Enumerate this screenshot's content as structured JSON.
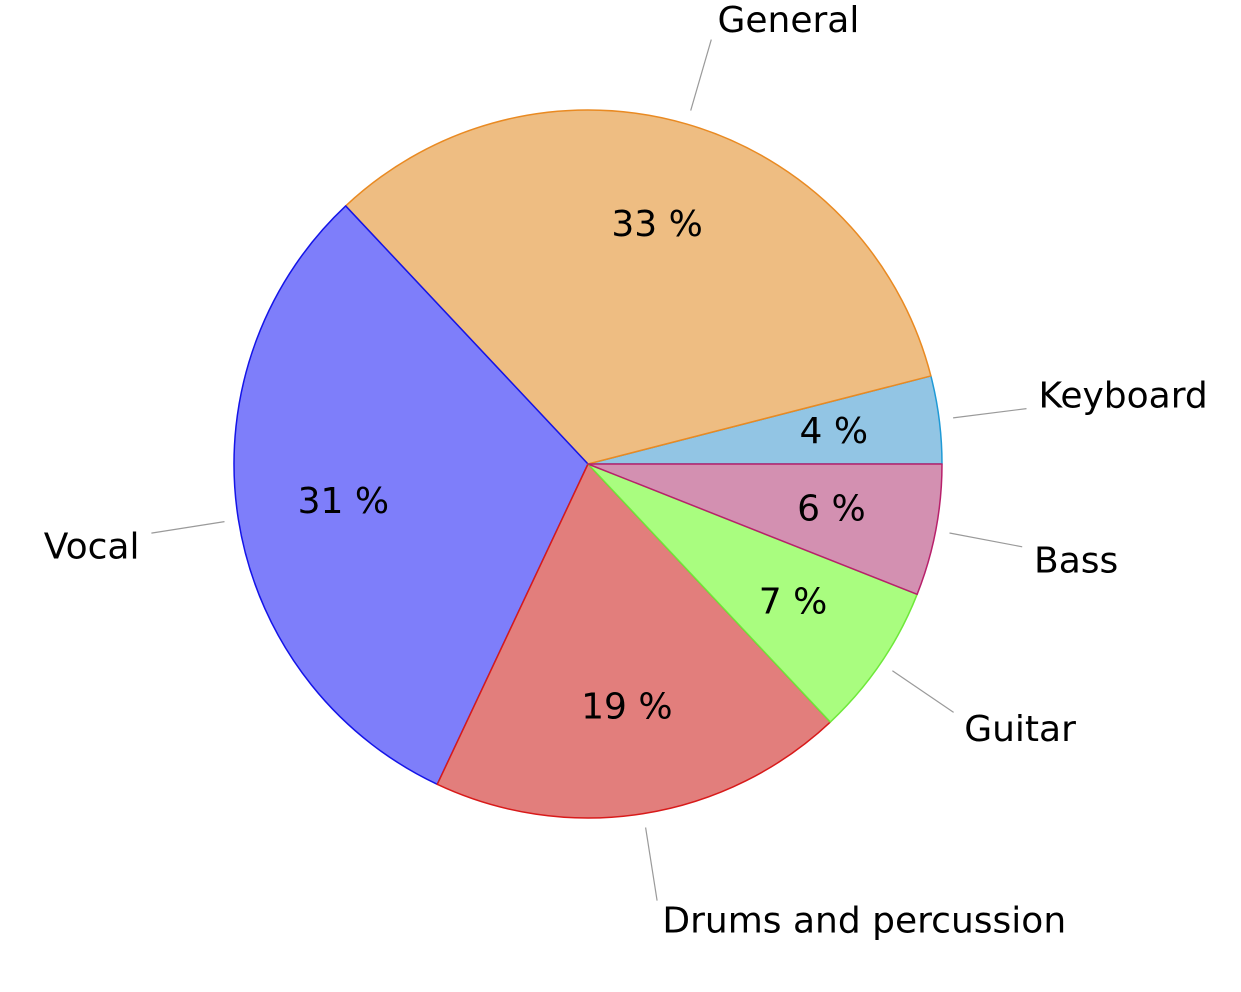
{
  "chart_data": {
    "type": "pie",
    "slices": [
      {
        "name": "Keyboard",
        "value": 4,
        "label": "4 %",
        "fill": "#92c5e4",
        "stroke": "#1f9ad6"
      },
      {
        "name": "General",
        "value": 33,
        "label": "33 %",
        "fill": "#eebd82",
        "stroke": "#e98a22"
      },
      {
        "name": "Vocal",
        "value": 31,
        "label": "31 %",
        "fill": "#7e7efa",
        "stroke": "#1414e8"
      },
      {
        "name": "Drums and percussion",
        "value": 19,
        "label": "19 %",
        "fill": "#e27e7c",
        "stroke": "#d81a1a"
      },
      {
        "name": "Guitar",
        "value": 7,
        "label": "7 %",
        "fill": "#a9fd7f",
        "stroke": "#6ee83a"
      },
      {
        "name": "Bass",
        "value": 6,
        "label": "6 %",
        "fill": "#d390b1",
        "stroke": "#b8206b"
      }
    ]
  }
}
